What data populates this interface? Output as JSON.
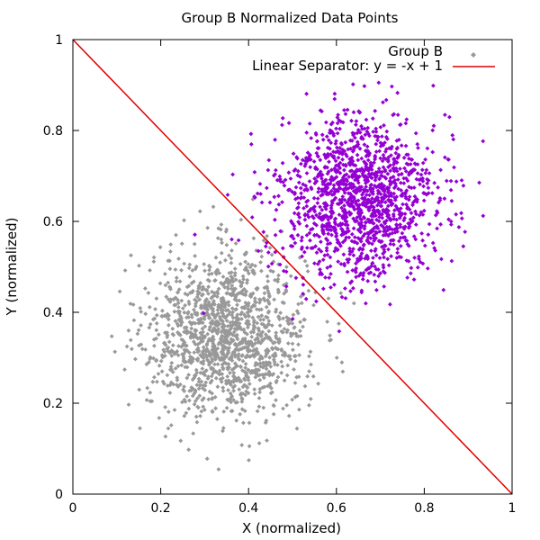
{
  "chart_data": {
    "type": "scatter",
    "title": "Group B Normalized Data Points",
    "xlabel": "X (normalized)",
    "ylabel": "Y (normalized)",
    "xlim": [
      0,
      1
    ],
    "ylim": [
      0,
      1
    ],
    "x_ticks": [
      "0",
      "0.2",
      "0.4",
      "0.6",
      "0.8",
      "1"
    ],
    "y_ticks": [
      "0",
      "0.2",
      "0.4",
      "0.6",
      "0.8",
      "1"
    ],
    "grid": false,
    "legend_position": "top-right",
    "series": [
      {
        "name": "Group B",
        "color": "#999999",
        "marker": "diamond",
        "distribution": {
          "center": [
            0.35,
            0.35
          ],
          "spread": 0.09,
          "count": 1400
        }
      },
      {
        "name": "",
        "color": "#9400d3",
        "marker": "diamond",
        "distribution": {
          "center": [
            0.65,
            0.65
          ],
          "spread": 0.09,
          "count": 1400
        }
      }
    ],
    "lines": [
      {
        "name": "Linear Separator: y = -x + 1",
        "color": "#e00000",
        "x": [
          0,
          1
        ],
        "y": [
          1,
          0
        ]
      }
    ]
  }
}
